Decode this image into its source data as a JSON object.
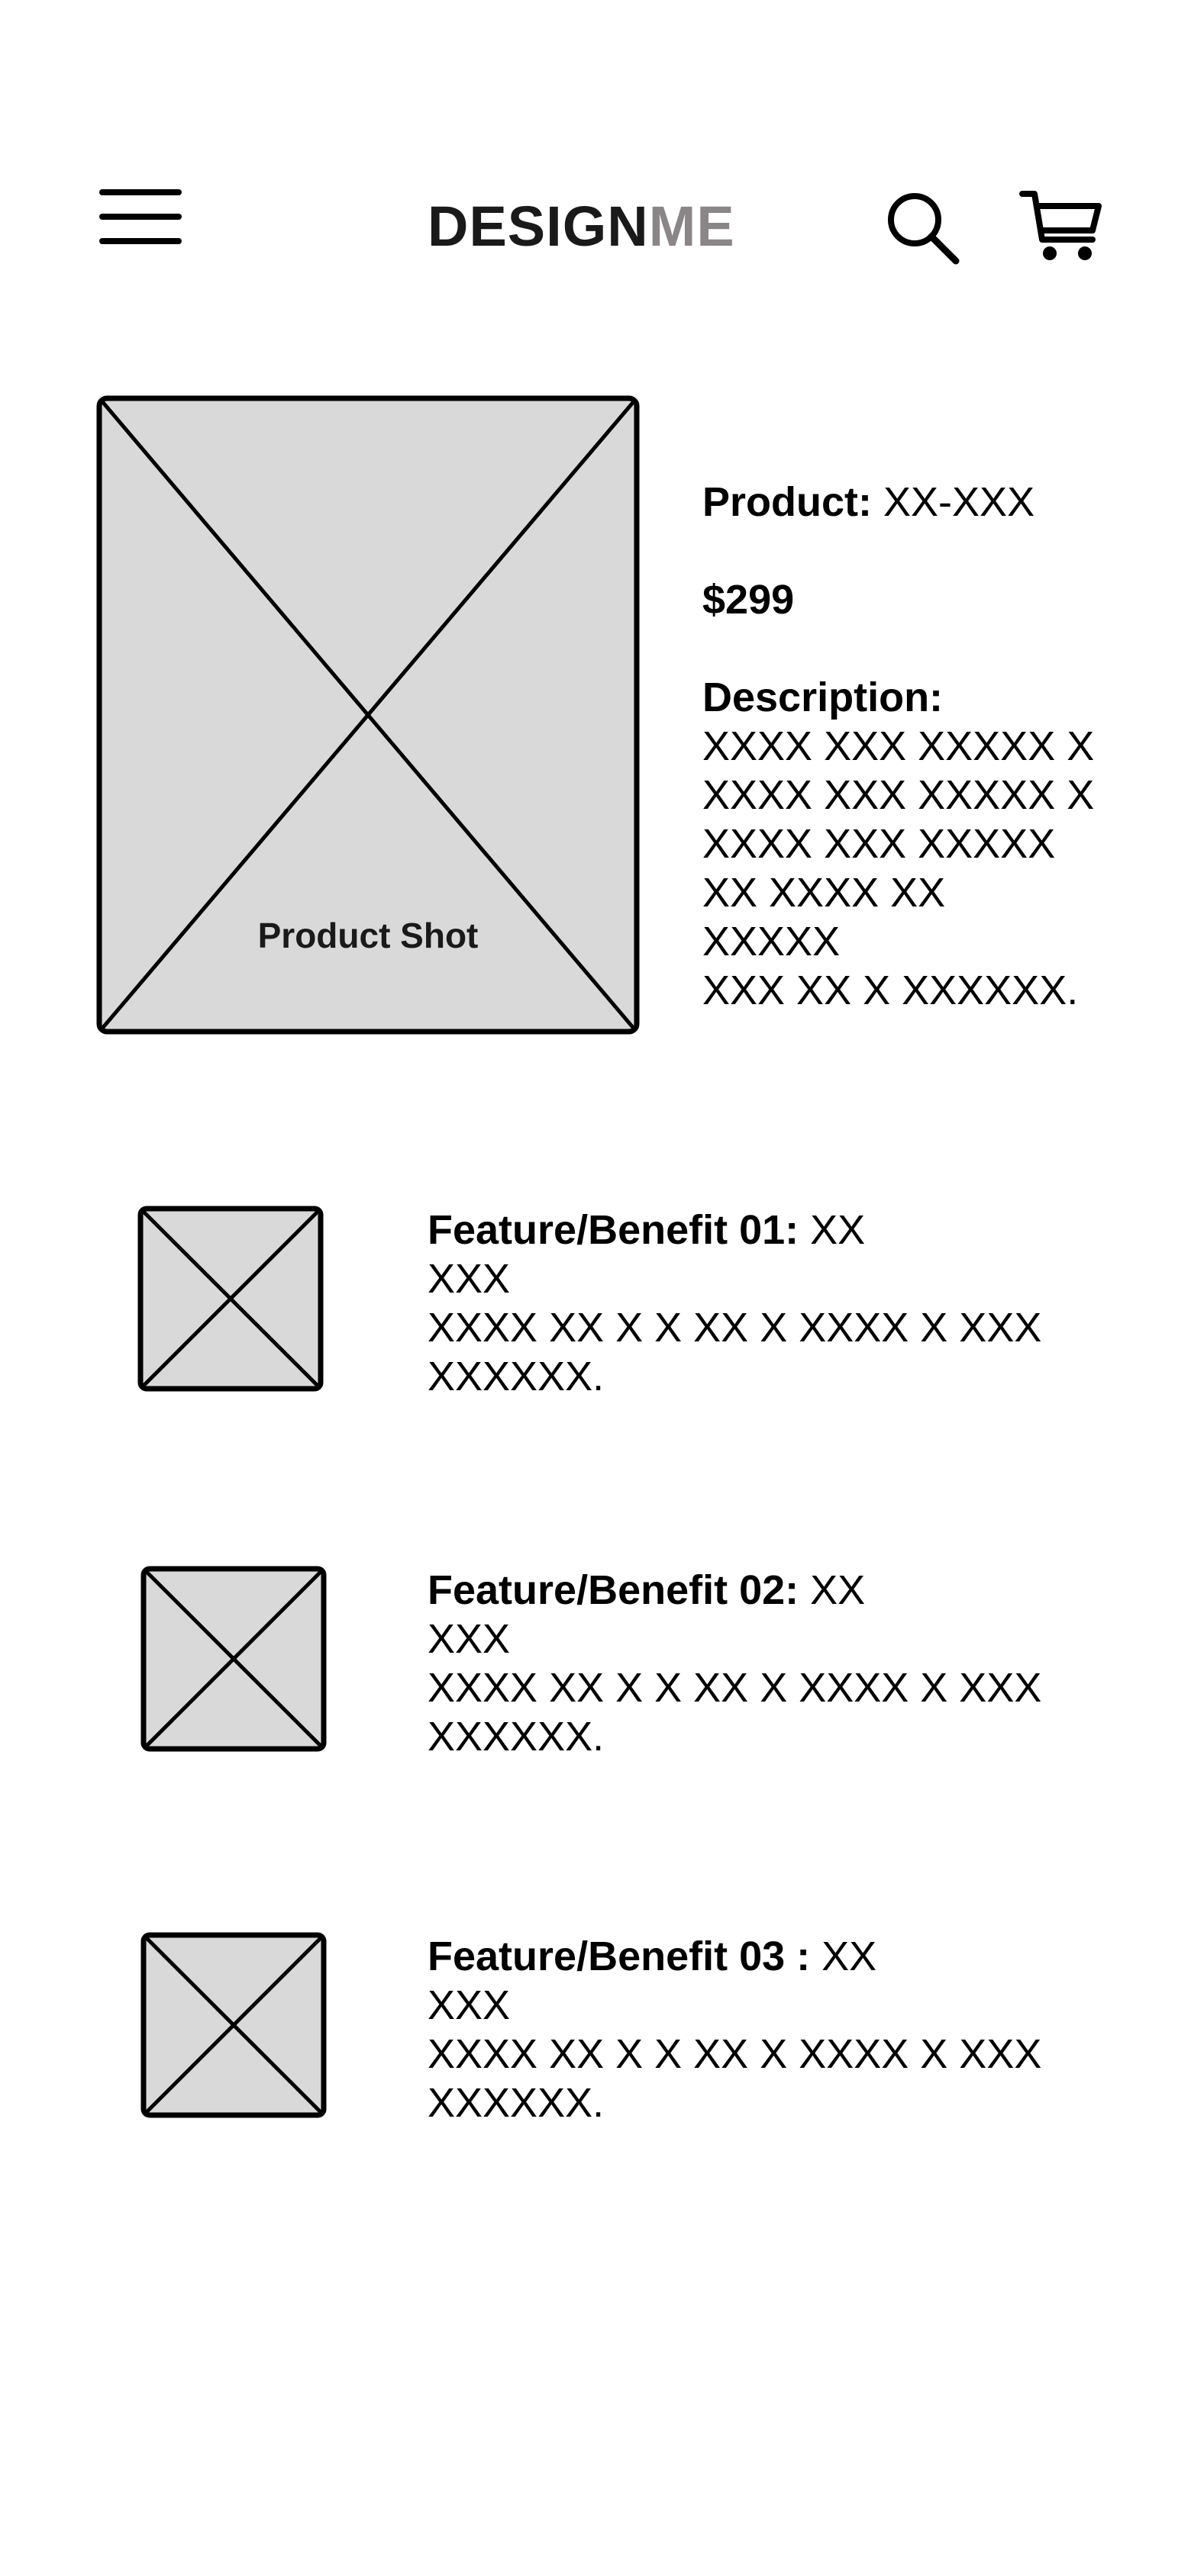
{
  "header": {
    "brand_strong": "DESIGN",
    "brand_light": "ME",
    "icons": {
      "menu": "hamburger-menu-icon",
      "search": "search-icon",
      "cart": "cart-icon"
    }
  },
  "product": {
    "image_caption": "Product Shot",
    "label": "Product:",
    "id": "XX-XXX",
    "price": "$299",
    "description_label": "Description:",
    "description_lines": [
      "XXXX XXX XXXXX X",
      "XXXX XXX XXXXX X",
      "XXXX XXX XXXXX",
      "XX XXXX XX",
      "XXXXX",
      "XXX XX X XXXXXX."
    ]
  },
  "features": [
    {
      "title": "Feature/Benefit 01:",
      "title_value": "XX",
      "lines": [
        "XXX",
        "XXXX XX X X XX X XXXX X XXX",
        "XXXXXX."
      ]
    },
    {
      "title": "Feature/Benefit 02:",
      "title_value": "XX",
      "lines": [
        "XXX",
        "XXXX XX X X XX X XXXX X XXX",
        "XXXXXX."
      ]
    },
    {
      "title": "Feature/Benefit 03 :",
      "title_value": "XX",
      "lines": [
        "XXX",
        "XXXX XX X X XX X XXXX X XXX",
        "XXXXXX."
      ]
    }
  ],
  "colors": {
    "placeholder_fill": "#d9d9d9",
    "stroke": "#000000",
    "brand_light": "#8a8587",
    "brand_strong": "#1a1a1a"
  }
}
